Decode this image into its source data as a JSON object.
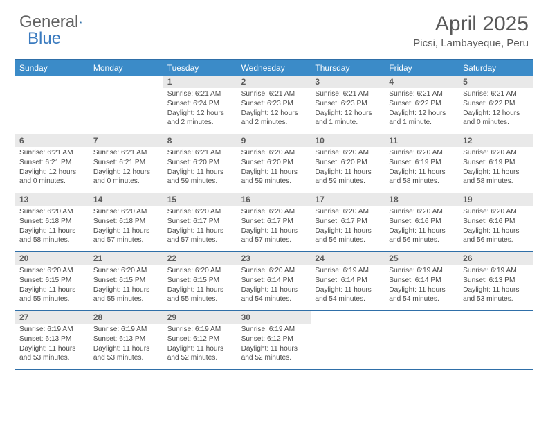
{
  "logo": {
    "word1": "General",
    "word2": "Blue"
  },
  "title": "April 2025",
  "location": "Picsi, Lambayeque, Peru",
  "colors": {
    "header_bar": "#3b8bc8",
    "border": "#2f6fa8",
    "daynum_bg": "#e9e9e9",
    "text_muted": "#595959",
    "logo_gray": "#616161",
    "logo_blue": "#3b7bbf"
  },
  "weekdays": [
    "Sunday",
    "Monday",
    "Tuesday",
    "Wednesday",
    "Thursday",
    "Friday",
    "Saturday"
  ],
  "weeks": [
    [
      null,
      null,
      {
        "n": "1",
        "sr": "Sunrise: 6:21 AM",
        "ss": "Sunset: 6:24 PM",
        "dl": "Daylight: 12 hours and 2 minutes."
      },
      {
        "n": "2",
        "sr": "Sunrise: 6:21 AM",
        "ss": "Sunset: 6:23 PM",
        "dl": "Daylight: 12 hours and 2 minutes."
      },
      {
        "n": "3",
        "sr": "Sunrise: 6:21 AM",
        "ss": "Sunset: 6:23 PM",
        "dl": "Daylight: 12 hours and 1 minute."
      },
      {
        "n": "4",
        "sr": "Sunrise: 6:21 AM",
        "ss": "Sunset: 6:22 PM",
        "dl": "Daylight: 12 hours and 1 minute."
      },
      {
        "n": "5",
        "sr": "Sunrise: 6:21 AM",
        "ss": "Sunset: 6:22 PM",
        "dl": "Daylight: 12 hours and 0 minutes."
      }
    ],
    [
      {
        "n": "6",
        "sr": "Sunrise: 6:21 AM",
        "ss": "Sunset: 6:21 PM",
        "dl": "Daylight: 12 hours and 0 minutes."
      },
      {
        "n": "7",
        "sr": "Sunrise: 6:21 AM",
        "ss": "Sunset: 6:21 PM",
        "dl": "Daylight: 12 hours and 0 minutes."
      },
      {
        "n": "8",
        "sr": "Sunrise: 6:21 AM",
        "ss": "Sunset: 6:20 PM",
        "dl": "Daylight: 11 hours and 59 minutes."
      },
      {
        "n": "9",
        "sr": "Sunrise: 6:20 AM",
        "ss": "Sunset: 6:20 PM",
        "dl": "Daylight: 11 hours and 59 minutes."
      },
      {
        "n": "10",
        "sr": "Sunrise: 6:20 AM",
        "ss": "Sunset: 6:20 PM",
        "dl": "Daylight: 11 hours and 59 minutes."
      },
      {
        "n": "11",
        "sr": "Sunrise: 6:20 AM",
        "ss": "Sunset: 6:19 PM",
        "dl": "Daylight: 11 hours and 58 minutes."
      },
      {
        "n": "12",
        "sr": "Sunrise: 6:20 AM",
        "ss": "Sunset: 6:19 PM",
        "dl": "Daylight: 11 hours and 58 minutes."
      }
    ],
    [
      {
        "n": "13",
        "sr": "Sunrise: 6:20 AM",
        "ss": "Sunset: 6:18 PM",
        "dl": "Daylight: 11 hours and 58 minutes."
      },
      {
        "n": "14",
        "sr": "Sunrise: 6:20 AM",
        "ss": "Sunset: 6:18 PM",
        "dl": "Daylight: 11 hours and 57 minutes."
      },
      {
        "n": "15",
        "sr": "Sunrise: 6:20 AM",
        "ss": "Sunset: 6:17 PM",
        "dl": "Daylight: 11 hours and 57 minutes."
      },
      {
        "n": "16",
        "sr": "Sunrise: 6:20 AM",
        "ss": "Sunset: 6:17 PM",
        "dl": "Daylight: 11 hours and 57 minutes."
      },
      {
        "n": "17",
        "sr": "Sunrise: 6:20 AM",
        "ss": "Sunset: 6:17 PM",
        "dl": "Daylight: 11 hours and 56 minutes."
      },
      {
        "n": "18",
        "sr": "Sunrise: 6:20 AM",
        "ss": "Sunset: 6:16 PM",
        "dl": "Daylight: 11 hours and 56 minutes."
      },
      {
        "n": "19",
        "sr": "Sunrise: 6:20 AM",
        "ss": "Sunset: 6:16 PM",
        "dl": "Daylight: 11 hours and 56 minutes."
      }
    ],
    [
      {
        "n": "20",
        "sr": "Sunrise: 6:20 AM",
        "ss": "Sunset: 6:15 PM",
        "dl": "Daylight: 11 hours and 55 minutes."
      },
      {
        "n": "21",
        "sr": "Sunrise: 6:20 AM",
        "ss": "Sunset: 6:15 PM",
        "dl": "Daylight: 11 hours and 55 minutes."
      },
      {
        "n": "22",
        "sr": "Sunrise: 6:20 AM",
        "ss": "Sunset: 6:15 PM",
        "dl": "Daylight: 11 hours and 55 minutes."
      },
      {
        "n": "23",
        "sr": "Sunrise: 6:20 AM",
        "ss": "Sunset: 6:14 PM",
        "dl": "Daylight: 11 hours and 54 minutes."
      },
      {
        "n": "24",
        "sr": "Sunrise: 6:19 AM",
        "ss": "Sunset: 6:14 PM",
        "dl": "Daylight: 11 hours and 54 minutes."
      },
      {
        "n": "25",
        "sr": "Sunrise: 6:19 AM",
        "ss": "Sunset: 6:14 PM",
        "dl": "Daylight: 11 hours and 54 minutes."
      },
      {
        "n": "26",
        "sr": "Sunrise: 6:19 AM",
        "ss": "Sunset: 6:13 PM",
        "dl": "Daylight: 11 hours and 53 minutes."
      }
    ],
    [
      {
        "n": "27",
        "sr": "Sunrise: 6:19 AM",
        "ss": "Sunset: 6:13 PM",
        "dl": "Daylight: 11 hours and 53 minutes."
      },
      {
        "n": "28",
        "sr": "Sunrise: 6:19 AM",
        "ss": "Sunset: 6:13 PM",
        "dl": "Daylight: 11 hours and 53 minutes."
      },
      {
        "n": "29",
        "sr": "Sunrise: 6:19 AM",
        "ss": "Sunset: 6:12 PM",
        "dl": "Daylight: 11 hours and 52 minutes."
      },
      {
        "n": "30",
        "sr": "Sunrise: 6:19 AM",
        "ss": "Sunset: 6:12 PM",
        "dl": "Daylight: 11 hours and 52 minutes."
      },
      null,
      null,
      null
    ]
  ]
}
